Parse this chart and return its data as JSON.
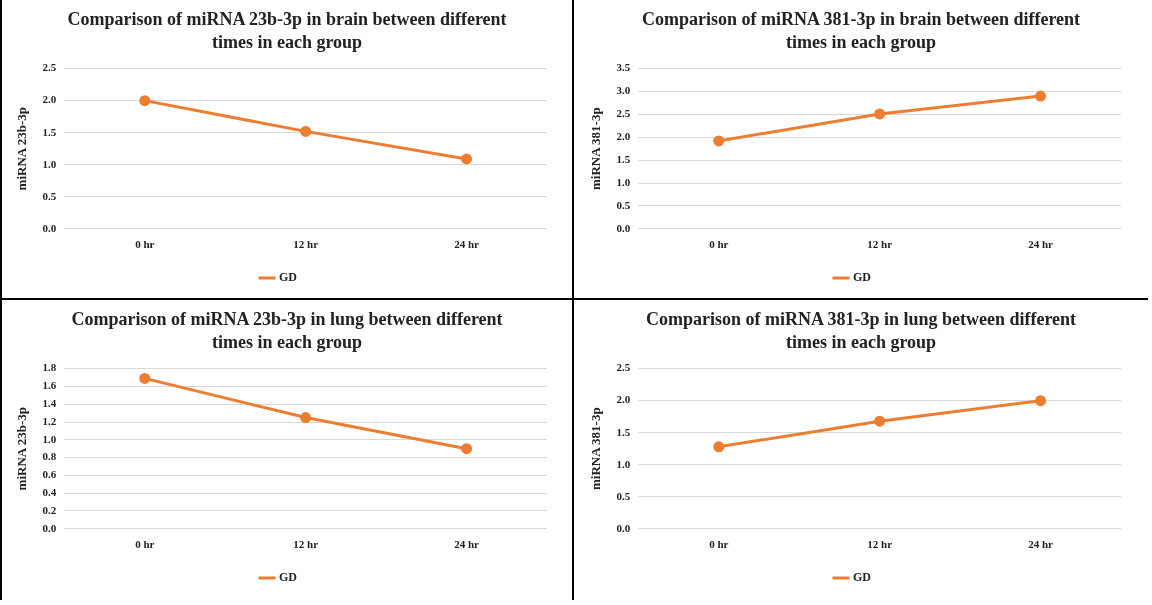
{
  "chart_data": [
    {
      "type": "line",
      "title": "Comparison of miRNA 23b-3p in brain between different times in each group",
      "ylabel": "miRNA 23b-3p",
      "categories": [
        "0 hr",
        "12 hr",
        "24 hr"
      ],
      "series": [
        {
          "name": "GD",
          "color": "#ed7d31",
          "values": [
            2.0,
            1.52,
            1.09
          ]
        }
      ],
      "ylim": [
        0,
        2.5
      ],
      "yticks": [
        {
          "value": 0,
          "label": "0.0"
        },
        {
          "value": 0.5,
          "label": "0.5"
        },
        {
          "value": 1,
          "label": "1.0"
        },
        {
          "value": 1.5,
          "label": "1.5"
        },
        {
          "value": 2,
          "label": "2.0"
        },
        {
          "value": 2.5,
          "label": "2.5"
        }
      ],
      "grid": "y",
      "legend": "bottom",
      "marker": "circle"
    },
    {
      "type": "line",
      "title": "Comparison of miRNA 381-3p in brain between different times in each group",
      "ylabel": "miRNA 381-3p",
      "categories": [
        "0 hr",
        "12 hr",
        "24 hr"
      ],
      "series": [
        {
          "name": "GD",
          "color": "#ed7d31",
          "values": [
            1.92,
            2.51,
            2.9
          ]
        }
      ],
      "ylim": [
        0,
        3.5
      ],
      "yticks": [
        {
          "value": 0,
          "label": "0.0"
        },
        {
          "value": 0.5,
          "label": "0.5"
        },
        {
          "value": 1,
          "label": "1.0"
        },
        {
          "value": 1.5,
          "label": "1.5"
        },
        {
          "value": 2,
          "label": "2.0"
        },
        {
          "value": 2.5,
          "label": "2.5"
        },
        {
          "value": 3,
          "label": "3.0"
        },
        {
          "value": 3.5,
          "label": "3.5"
        }
      ],
      "grid": "y",
      "legend": "bottom",
      "marker": "circle"
    },
    {
      "type": "line",
      "title": "Comparison of miRNA 23b-3p in lung between different times in each group",
      "ylabel": "miRNA 23b-3p",
      "categories": [
        "0 hr",
        "12 hr",
        "24 hr"
      ],
      "series": [
        {
          "name": "GD",
          "color": "#ed7d31",
          "values": [
            1.69,
            1.25,
            0.9
          ]
        }
      ],
      "ylim": [
        0,
        1.8
      ],
      "yticks": [
        {
          "value": 0,
          "label": "0.0"
        },
        {
          "value": 0.2,
          "label": "0.2"
        },
        {
          "value": 0.4,
          "label": "0.4"
        },
        {
          "value": 0.6,
          "label": "0.6"
        },
        {
          "value": 0.8,
          "label": "0.8"
        },
        {
          "value": 1,
          "label": "1.0"
        },
        {
          "value": 1.2,
          "label": "1.2"
        },
        {
          "value": 1.4,
          "label": "1.4"
        },
        {
          "value": 1.6,
          "label": "1.6"
        },
        {
          "value": 1.8,
          "label": "1.8"
        }
      ],
      "grid": "y",
      "legend": "bottom",
      "marker": "circle"
    },
    {
      "type": "line",
      "title": "Comparison of miRNA 381-3p in lung between different times in each group",
      "ylabel": "miRNA 381-3p",
      "categories": [
        "0 hr",
        "12 hr",
        "24 hr"
      ],
      "series": [
        {
          "name": "GD",
          "color": "#ed7d31",
          "values": [
            1.28,
            1.68,
            2.0
          ]
        }
      ],
      "ylim": [
        0,
        2.5
      ],
      "yticks": [
        {
          "value": 0,
          "label": "0.0"
        },
        {
          "value": 0.5,
          "label": "0.5"
        },
        {
          "value": 1,
          "label": "1.0"
        },
        {
          "value": 1.5,
          "label": "1.5"
        },
        {
          "value": 2,
          "label": "2.0"
        },
        {
          "value": 2.5,
          "label": "2.5"
        }
      ],
      "grid": "y",
      "legend": "bottom",
      "marker": "circle"
    }
  ]
}
